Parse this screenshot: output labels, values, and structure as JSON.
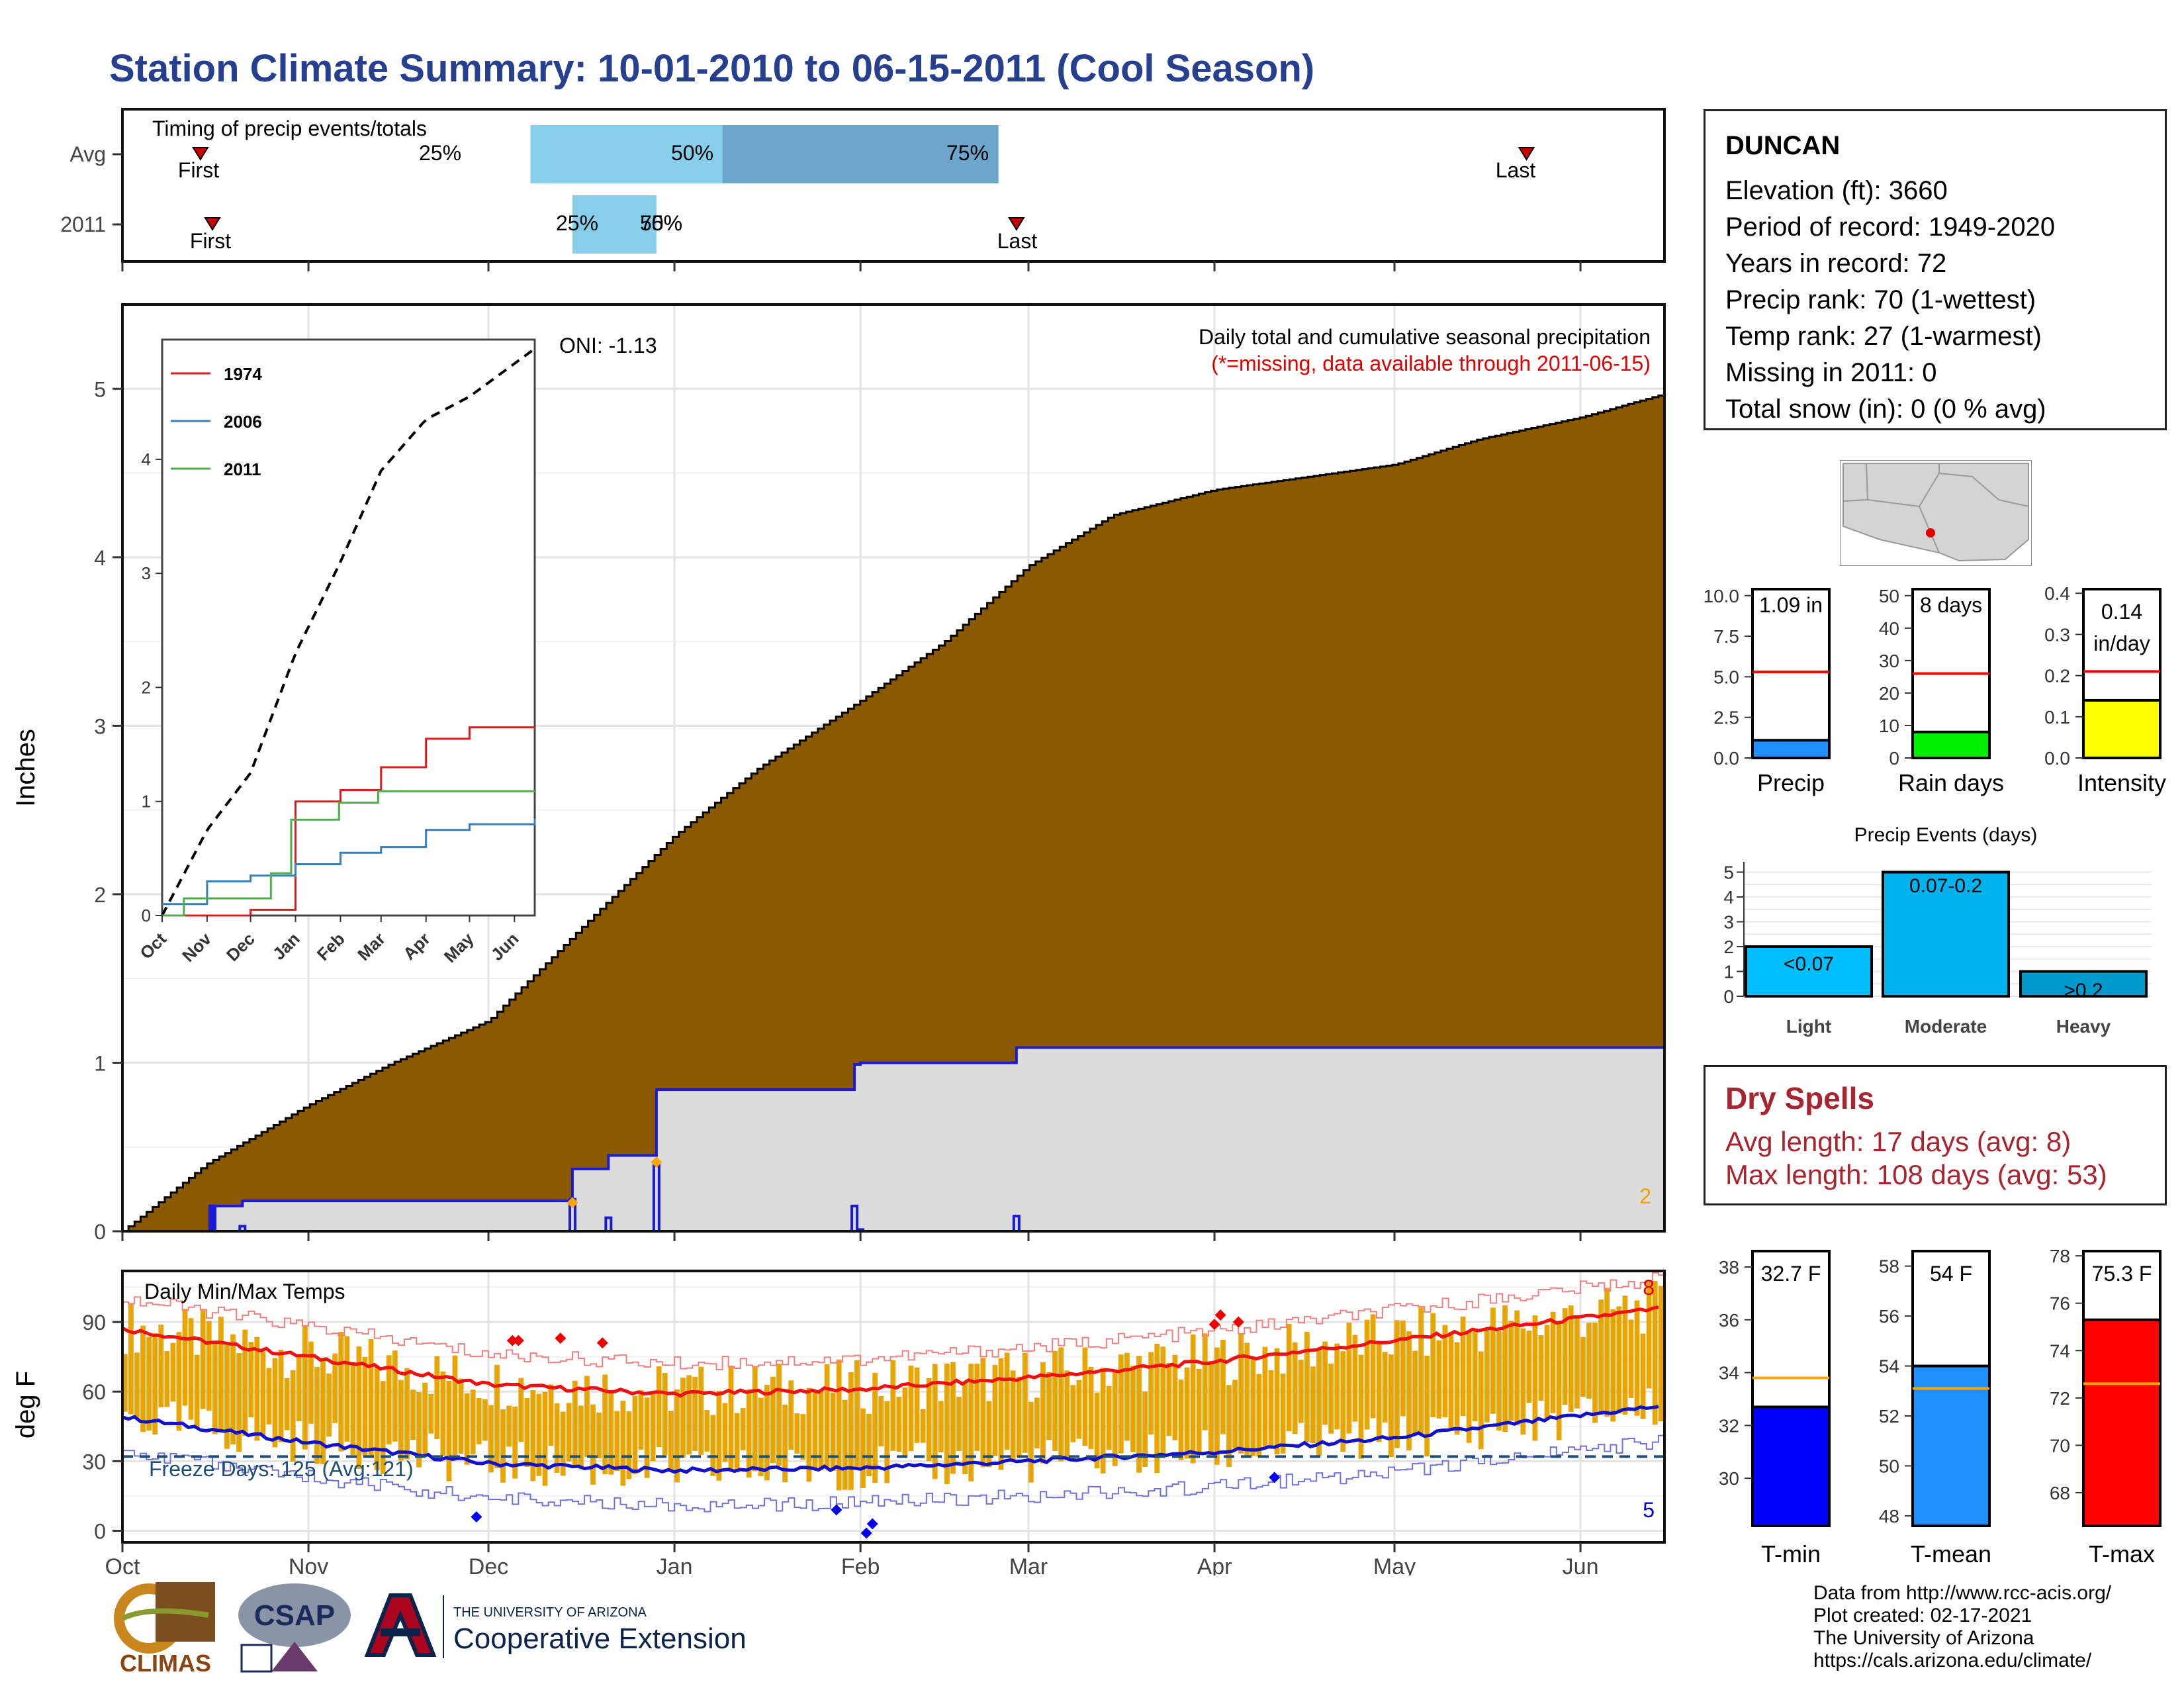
{
  "title": "Station Climate Summary: 10-01-2010 to 06-15-2011 (Cool Season)",
  "colors": {
    "title": "#273f8f",
    "cumulative_fill": "#8b5a00",
    "current_fill": "#dcdcdc",
    "current_line": "#1a1ad8",
    "temp_bar": "#e8a400",
    "tmax_line": "#ee1111",
    "tmin_line": "#1111cc",
    "freeze_line": "#1f4e79",
    "dry": "#a8242f",
    "light_blue": "#87ceeb",
    "steel_blue": "#6ca6cd"
  },
  "timing": {
    "label": "Timing of precip events/totals",
    "rows": [
      {
        "name": "Avg",
        "first_label": "First",
        "last_label": "Last",
        "q25": "25%",
        "q50": "50%",
        "q75": "75%"
      },
      {
        "name": "2011",
        "first_label": "First",
        "last_label": "Last",
        "q25": "25%",
        "q50": "50%",
        "q75": "75%"
      }
    ]
  },
  "month_labels": [
    "Oct",
    "Nov",
    "Dec",
    "Jan",
    "Feb",
    "Mar",
    "Apr",
    "May",
    "Jun"
  ],
  "precip_panel": {
    "ylabel": "Inches",
    "y_ticks": [
      "0",
      "1",
      "2",
      "3",
      "4",
      "5"
    ],
    "header": "Daily total and cumulative seasonal precipitation",
    "missing_note": "(*=missing, data available through 2011-06-15)",
    "oni": "ONI: -1.13",
    "corner_count": "2"
  },
  "inset": {
    "y_ticks": [
      "0",
      "1",
      "2",
      "3",
      "4"
    ],
    "x_ticks": [
      "Oct",
      "Nov",
      "Dec",
      "Jan",
      "Feb",
      "Mar",
      "Apr",
      "May",
      "Jun"
    ],
    "legend": [
      {
        "name": "1974",
        "color": "#e41a1c"
      },
      {
        "name": "2006",
        "color": "#377eb8"
      },
      {
        "name": "2011",
        "color": "#4daf4a"
      }
    ]
  },
  "temp_panel": {
    "ylabel": "deg F",
    "y_ticks": [
      "0",
      "30",
      "60",
      "90"
    ],
    "header": "Daily Min/Max Temps",
    "freeze_label": "Freeze Days: 125 (Avg:121)",
    "max_count": "8",
    "min_count": "5"
  },
  "station": {
    "name": "DUNCAN",
    "rows": [
      "Elevation (ft): 3660",
      "Period of record: 1949-2020",
      "Years in record: 72",
      "Precip rank: 70 (1-wettest)",
      "Temp rank: 27 (1-warmest)",
      "Missing in 2011: 0",
      "Total snow (in): 0 (0 % avg)"
    ]
  },
  "mini_bars": {
    "precip": {
      "label": "Precip",
      "value_label": "1.09 in",
      "ticks": [
        "0.0",
        "2.5",
        "5.0",
        "7.5",
        "10.0"
      ],
      "color": "#1e90ff"
    },
    "rain_days": {
      "label": "Rain days",
      "value_label": "8 days",
      "ticks": [
        "0",
        "10",
        "20",
        "30",
        "40",
        "50"
      ],
      "color": "#00ee00"
    },
    "intensity": {
      "label": "Intensity",
      "value_label_1": "0.14",
      "value_label_2": "in/day",
      "ticks": [
        "0.0",
        "0.1",
        "0.2",
        "0.3",
        "0.4"
      ],
      "color": "#ffff00"
    }
  },
  "events": {
    "title": "Precip Events (days)",
    "ticks": [
      "0",
      "1",
      "2",
      "3",
      "4",
      "5"
    ],
    "categories": [
      {
        "name": "Light",
        "label": "<0.07",
        "color": "#00bfff"
      },
      {
        "name": "Moderate",
        "label": "0.07-0.2",
        "color": "#00b2ee"
      },
      {
        "name": "Heavy",
        "label": ">0.2",
        "color": "#009acd"
      }
    ]
  },
  "dry_spells": {
    "title": "Dry Spells",
    "avg": "Avg length: 17 days (avg: 8)",
    "max": "Max length: 108 days (avg: 53)"
  },
  "temp_bars": {
    "tmin": {
      "label": "T-min",
      "value_label": "32.7 F",
      "ticks": [
        "30",
        "32",
        "34",
        "36",
        "38"
      ],
      "color": "#0000ff"
    },
    "tmean": {
      "label": "T-mean",
      "value_label": "54 F",
      "ticks": [
        "48",
        "50",
        "52",
        "54",
        "56",
        "58"
      ],
      "color": "#1e90ff"
    },
    "tmax": {
      "label": "T-max",
      "value_label": "75.3 F",
      "ticks": [
        "68",
        "70",
        "72",
        "74",
        "76",
        "78"
      ],
      "color": "#ff0000"
    }
  },
  "credits": [
    "Data from http://www.rcc-acis.org/",
    "Plot created: 02-17-2021",
    "The University of Arizona",
    "https://cals.arizona.edu/climate/"
  ],
  "logos": {
    "climas": "CLIMAS",
    "csap": "CSAP",
    "ua_small": "THE UNIVERSITY OF ARIZONA",
    "ua_big": "Cooperative Extension"
  },
  "chart_data": [
    {
      "type": "bar",
      "title": "Timing of precip events/totals",
      "categories": [
        "Avg",
        "2011"
      ],
      "series": [
        {
          "name": "First",
          "values": [
            "2010-10-14",
            "2010-10-16"
          ]
        },
        {
          "name": "25%",
          "values": [
            "2010-12-08",
            "2010-12-15"
          ]
        },
        {
          "name": "50%",
          "values": [
            "2011-01-09",
            "2010-12-29"
          ]
        },
        {
          "name": "75%",
          "values": [
            "2011-02-24",
            "2010-12-29"
          ]
        },
        {
          "name": "Last",
          "values": [
            "2011-05-23",
            "2011-02-27"
          ]
        }
      ]
    },
    {
      "type": "area",
      "title": "Daily total and cumulative seasonal precipitation",
      "ylabel": "Inches",
      "ylim": [
        0,
        5.5
      ],
      "series": [
        {
          "name": "cumulative average",
          "x": [
            "2010-10-01",
            "2010-10-15",
            "2010-11-01",
            "2010-11-15",
            "2010-12-01",
            "2010-12-15",
            "2011-01-01",
            "2011-01-15",
            "2011-02-01",
            "2011-02-15",
            "2011-03-01",
            "2011-03-15",
            "2011-04-01",
            "2011-04-15",
            "2011-05-01",
            "2011-05-15",
            "2011-06-01",
            "2011-06-15"
          ],
          "values": [
            0.0,
            0.4,
            0.75,
            1.0,
            1.25,
            1.75,
            2.35,
            2.75,
            3.15,
            3.5,
            3.95,
            4.25,
            4.4,
            4.47,
            4.55,
            4.7,
            4.83,
            4.97
          ]
        },
        {
          "name": "cumulative 2011",
          "x": [
            "2010-10-01",
            "2010-10-16",
            "2010-10-21",
            "2010-12-15",
            "2010-12-21",
            "2010-12-29",
            "2011-01-31",
            "2011-02-01",
            "2011-02-27",
            "2011-06-15"
          ],
          "values": [
            0.0,
            0.15,
            0.18,
            0.37,
            0.45,
            0.84,
            0.99,
            1.0,
            1.09,
            1.09
          ]
        }
      ]
    },
    {
      "type": "line",
      "title": "inset cumulative precipitation",
      "ylim": [
        0,
        5
      ],
      "series": [
        {
          "name": "average",
          "x": [
            "2010-10-01",
            "2010-11-01",
            "2010-12-01",
            "2011-01-01",
            "2011-02-01",
            "2011-03-01",
            "2011-04-01",
            "2011-05-01",
            "2011-06-15"
          ],
          "values": [
            0.0,
            0.75,
            1.25,
            2.3,
            3.1,
            3.9,
            4.35,
            4.55,
            4.97
          ]
        },
        {
          "name": "1974",
          "x": [
            "2010-10-01",
            "2010-12-01",
            "2011-01-01",
            "2011-02-01",
            "2011-03-01",
            "2011-04-01",
            "2011-05-01",
            "2011-06-15"
          ],
          "values": [
            0.0,
            0.05,
            1.0,
            1.1,
            1.3,
            1.55,
            1.65,
            1.65
          ]
        },
        {
          "name": "2006",
          "x": [
            "2010-10-01",
            "2010-11-01",
            "2010-12-01",
            "2011-01-01",
            "2011-02-01",
            "2011-03-01",
            "2011-04-01",
            "2011-05-01",
            "2011-06-15"
          ],
          "values": [
            0.1,
            0.3,
            0.35,
            0.45,
            0.55,
            0.6,
            0.75,
            0.8,
            0.85
          ]
        },
        {
          "name": "2011",
          "x": [
            "2010-10-01",
            "2010-10-16",
            "2010-12-15",
            "2010-12-29",
            "2011-01-31",
            "2011-02-27",
            "2011-06-15"
          ],
          "values": [
            0.0,
            0.15,
            0.37,
            0.84,
            0.99,
            1.09,
            1.09
          ]
        }
      ]
    },
    {
      "type": "line",
      "title": "Daily Min/Max Temps",
      "ylabel": "deg F",
      "ylim": [
        -5,
        112
      ],
      "series": [
        {
          "name": "average max",
          "x": [
            "2010-10-01",
            "2010-11-01",
            "2010-12-01",
            "2011-01-01",
            "2011-02-01",
            "2011-03-01",
            "2011-04-01",
            "2011-05-01",
            "2011-06-15"
          ],
          "values": [
            87,
            75,
            63,
            59,
            61,
            66,
            73,
            82,
            96
          ]
        },
        {
          "name": "average min",
          "x": [
            "2010-10-01",
            "2010-11-01",
            "2010-12-01",
            "2011-01-01",
            "2011-02-01",
            "2011-03-01",
            "2011-04-01",
            "2011-05-01",
            "2011-06-15"
          ],
          "values": [
            49,
            38,
            29,
            26,
            27,
            30,
            34,
            40,
            54
          ]
        },
        {
          "name": "freeze line",
          "x": [
            "2010-10-01",
            "2011-06-15"
          ],
          "values": [
            32,
            32
          ]
        }
      ]
    },
    {
      "type": "bar",
      "title": "Precip / Rain days / Intensity",
      "categories": [
        "Precip",
        "Rain days",
        "Intensity"
      ],
      "series": [
        {
          "name": "value",
          "values": [
            1.09,
            8,
            0.14
          ]
        },
        {
          "name": "average",
          "values": [
            5.3,
            26,
            0.21
          ]
        }
      ]
    },
    {
      "type": "bar",
      "title": "Precip Events (days)",
      "categories": [
        "Light",
        "Moderate",
        "Heavy"
      ],
      "values": [
        2,
        5,
        1
      ],
      "ylim": [
        0,
        5
      ]
    },
    {
      "type": "bar",
      "title": "T-min / T-mean / T-max",
      "categories": [
        "T-min",
        "T-mean",
        "T-max"
      ],
      "series": [
        {
          "name": "value",
          "values": [
            32.7,
            54,
            75.3
          ]
        },
        {
          "name": "average",
          "values": [
            33.8,
            53.1,
            72.6
          ]
        }
      ]
    }
  ]
}
